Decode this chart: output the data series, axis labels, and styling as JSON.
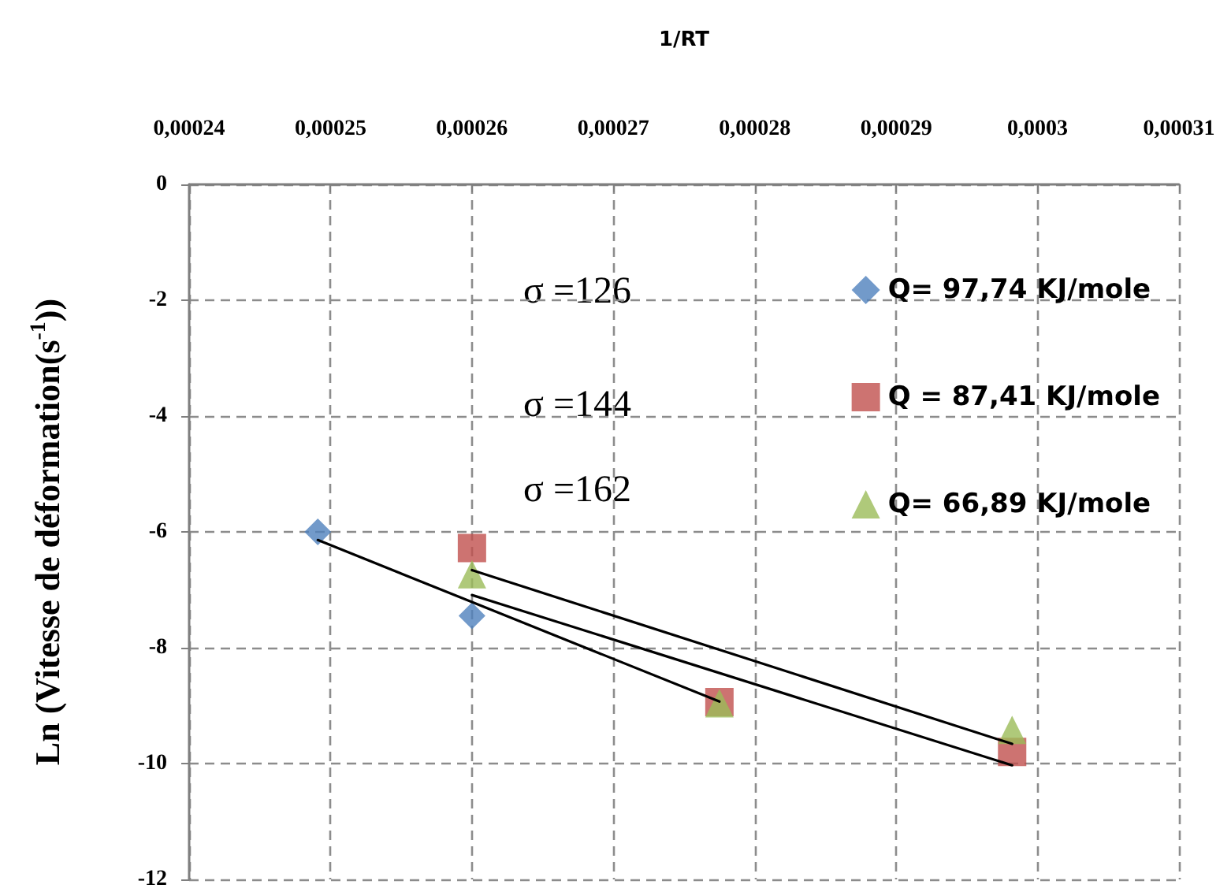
{
  "chart_data": {
    "type": "scatter",
    "xlabel": "1/RT",
    "ylabel": "Ln (Vitesse de déformation(s$^{-1}$))",
    "xlim": [
      0.00024,
      0.00031
    ],
    "xticks": [
      {
        "value": 0.00024,
        "label": "0,00024"
      },
      {
        "value": 0.00025,
        "label": "0,00025"
      },
      {
        "value": 0.00026,
        "label": "0,00026"
      },
      {
        "value": 0.00027,
        "label": "0,00027"
      },
      {
        "value": 0.00028,
        "label": "0,00028"
      },
      {
        "value": 0.00029,
        "label": "0,00029"
      },
      {
        "value": 0.0003,
        "label": "0,0003"
      },
      {
        "value": 0.00031,
        "label": "0,00031"
      }
    ],
    "ylim": [
      -12,
      0
    ],
    "yticks": [
      -12,
      -10,
      -8,
      -6,
      -4,
      -2,
      0
    ],
    "grid": true,
    "legend": "top right",
    "annotations": [
      "σ =126",
      "σ =144",
      "σ =162"
    ],
    "series": [
      {
        "name": "Q= 97,74 KJ/mole",
        "color": "#4f81bd",
        "marker": "diamond",
        "x": [
          0.0002491,
          0.00026
        ],
        "values": [
          -6.0,
          -7.45
        ]
      },
      {
        "name": "Q = 87,41 KJ/mole",
        "color": "#c0504d",
        "marker": "square",
        "x": [
          0.00026,
          0.0002775,
          0.0002982
        ],
        "values": [
          -6.28,
          -8.94,
          -9.8
        ]
      },
      {
        "name": "Q= 66,89 KJ/mole",
        "color": "#9bbb59",
        "marker": "triangle",
        "x": [
          0.00026,
          0.0002775,
          0.0002982
        ],
        "values": [
          -6.73,
          -8.96,
          -9.42
        ]
      },
      {
        "type": "line",
        "color": "#000000",
        "marker": "none",
        "x": [
          0.0002491,
          0.0002775
        ],
        "values": [
          -6.14,
          -8.93
        ]
      },
      {
        "type": "line",
        "color": "#000000",
        "marker": "none",
        "x": [
          0.00026,
          0.0002982
        ],
        "values": [
          -6.66,
          -9.66
        ]
      },
      {
        "type": "line",
        "color": "#000000",
        "marker": "none",
        "x": [
          0.00026,
          0.0002982
        ],
        "values": [
          -7.09,
          -10.03
        ]
      }
    ]
  }
}
